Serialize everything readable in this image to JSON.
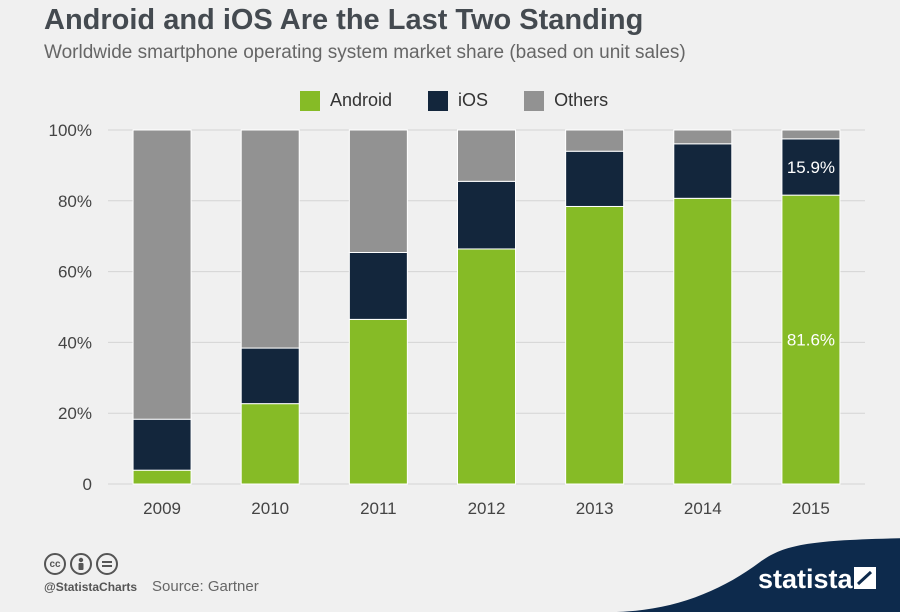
{
  "header": {
    "title": "Android and iOS Are the Last Two Standing",
    "subtitle": "Worldwide smartphone operating system market share (based on unit sales)"
  },
  "legend": [
    {
      "label": "Android",
      "color": "#86bb26"
    },
    {
      "label": "iOS",
      "color": "#13263c"
    },
    {
      "label": "Others",
      "color": "#929292"
    }
  ],
  "footer": {
    "handle": "@StatistaCharts",
    "source": "Source: Gartner",
    "brand": "statista",
    "icons": [
      "cc-icon",
      "by-icon",
      "nd-icon"
    ]
  },
  "chart_data": {
    "type": "bar",
    "stacked": true,
    "categories": [
      "2009",
      "2010",
      "2011",
      "2012",
      "2013",
      "2014",
      "2015"
    ],
    "series": [
      {
        "name": "Android",
        "color": "#86bb26",
        "values": [
          3.9,
          22.7,
          46.5,
          66.4,
          78.4,
          80.7,
          81.6
        ]
      },
      {
        "name": "iOS",
        "color": "#13263c",
        "values": [
          14.4,
          15.7,
          18.9,
          19.1,
          15.6,
          15.4,
          15.9
        ]
      },
      {
        "name": "Others",
        "color": "#929292",
        "values": [
          81.7,
          61.6,
          34.6,
          14.5,
          6.0,
          3.9,
          2.5
        ]
      }
    ],
    "data_labels": [
      {
        "series": "Android",
        "category": "2015",
        "text": "81.6%"
      },
      {
        "series": "iOS",
        "category": "2015",
        "text": "15.9%"
      }
    ],
    "yticks": [
      {
        "value": 0,
        "label": "0"
      },
      {
        "value": 20,
        "label": "20%"
      },
      {
        "value": 40,
        "label": "40%"
      },
      {
        "value": 60,
        "label": "60%"
      },
      {
        "value": 80,
        "label": "80%"
      },
      {
        "value": 100,
        "label": "100%"
      }
    ],
    "ylim": [
      0,
      100
    ],
    "grid": true,
    "legend_position": "top"
  }
}
